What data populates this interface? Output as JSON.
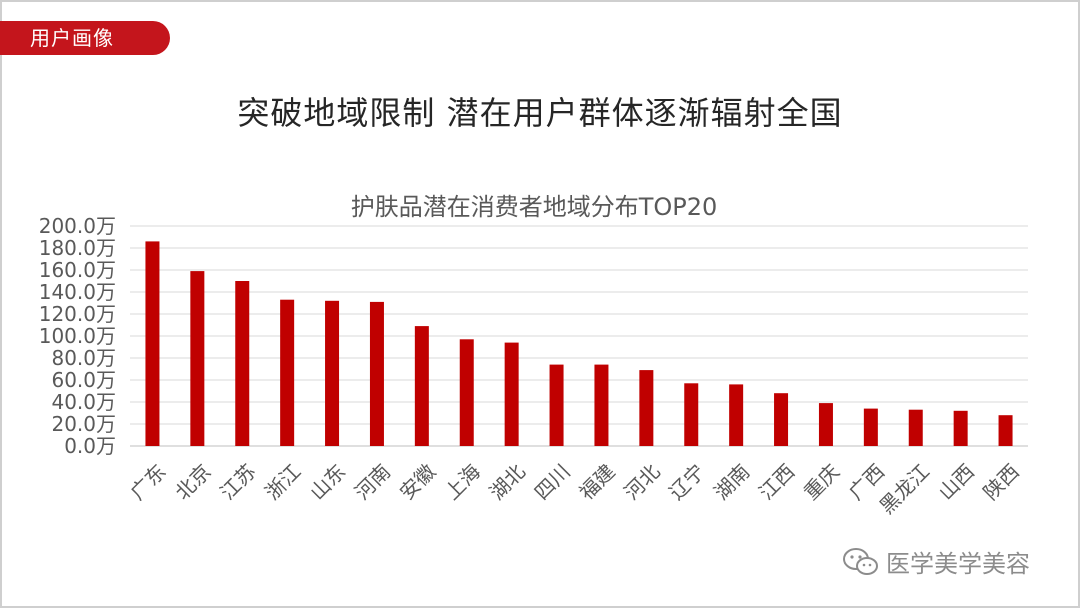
{
  "section_tag": "用户画像",
  "headline": "突破地域限制 潜在用户群体逐渐辐射全国",
  "watermark": "医学美学美容",
  "colors": {
    "accent": "#c4151c",
    "bar": "#c00000",
    "grid": "#d9d9d9",
    "text": "#595959"
  },
  "chart_data": {
    "type": "bar",
    "title": "护肤品潜在消费者地域分布TOP20",
    "xlabel": "",
    "ylabel": "",
    "ylim": [
      0,
      200
    ],
    "yticks": [
      0,
      20,
      40,
      60,
      80,
      100,
      120,
      140,
      160,
      180,
      200
    ],
    "ytick_labels": [
      "0.0万",
      "20.0万",
      "40.0万",
      "60.0万",
      "80.0万",
      "100.0万",
      "120.0万",
      "140.0万",
      "160.0万",
      "180.0万",
      "200.0万"
    ],
    "unit": "万",
    "grid": true,
    "legend": "none",
    "categories": [
      "广东",
      "北京",
      "江苏",
      "浙江",
      "山东",
      "河南",
      "安徽",
      "上海",
      "湖北",
      "四川",
      "福建",
      "河北",
      "辽宁",
      "湖南",
      "江西",
      "重庆",
      "广西",
      "黑龙江",
      "山西",
      "陕西"
    ],
    "values": [
      186,
      159,
      150,
      133,
      132,
      131,
      109,
      97,
      94,
      74,
      74,
      69,
      57,
      56,
      48,
      39,
      34,
      33,
      32,
      28
    ]
  }
}
